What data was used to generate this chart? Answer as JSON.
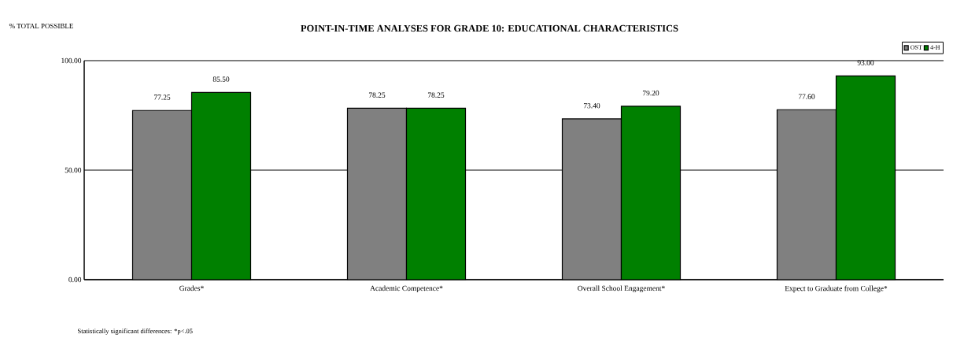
{
  "chart_data": {
    "type": "bar",
    "title": "POINT-IN-TIME ANALYSES FOR GRADE 10: EDUCATIONAL CHARACTERISTICS",
    "ylabel": "% TOTAL POSSIBLE",
    "categories": [
      "Grades*",
      "Academic Competence*",
      "Overall School Engagement*",
      "Expect to Graduate from College*"
    ],
    "series": [
      {
        "name": "OST",
        "color": "#808080",
        "values": [
          77.25,
          78.25,
          73.4,
          77.6
        ],
        "value_labels": [
          "77.25",
          "78.25",
          "73.40",
          "77.60"
        ]
      },
      {
        "name": "4-H",
        "color": "#008000",
        "values": [
          85.5,
          78.25,
          79.2,
          93.0
        ],
        "value_labels": [
          "85.50",
          "78.25",
          "79.20",
          "93.00"
        ]
      }
    ],
    "ylim": [
      0,
      100
    ],
    "yticks": [
      {
        "value": 0,
        "label": "0.00"
      },
      {
        "value": 50,
        "label": "50.00"
      },
      {
        "value": 100,
        "label": "100.00"
      }
    ],
    "grid": "y",
    "legend": "top right",
    "annotations": [
      "Statistically significant differences: *p<.05"
    ]
  }
}
